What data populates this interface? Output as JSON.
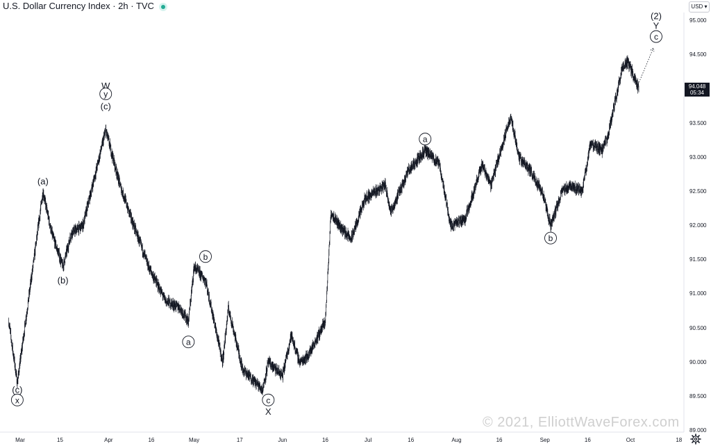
{
  "header": {
    "title": "U.S. Dollar Currency Index · 2h · TVC",
    "currency_label": "USD",
    "live_icon": "green-dot-icon"
  },
  "price_badge": {
    "price": "94.048",
    "countdown": "05:34"
  },
  "watermark": "© 2021, ElliottWaveForex.com",
  "settings_icon": "gear-icon",
  "colors": {
    "candles": "#131722",
    "badge": "#131722",
    "live": "#22ab94"
  },
  "chart_data": {
    "type": "line",
    "title": "U.S. Dollar Currency Index",
    "xlabel": "",
    "ylabel": "",
    "ylim": [
      89.0,
      95.25
    ],
    "grid": false,
    "x_ticks": [
      "Mar",
      "15",
      "Apr",
      "16",
      "May",
      "17",
      "Jun",
      "16",
      "Jul",
      "16",
      "Aug",
      "16",
      "Sep",
      "16",
      "Oct",
      "18"
    ],
    "y_ticks": [
      "95.000",
      "94.500",
      "94.000",
      "93.500",
      "93.000",
      "92.500",
      "92.000",
      "91.500",
      "91.000",
      "90.500",
      "90.000",
      "89.500",
      "89.000"
    ],
    "series": [
      {
        "values": [
          {
            "x": "Feb 25",
            "y": 90.6
          },
          {
            "x": "Feb 28",
            "y": 89.7
          },
          {
            "x": "Mar 9",
            "y": 92.5
          },
          {
            "x": "Mar 12",
            "y": 91.9
          },
          {
            "x": "Mar 16",
            "y": 91.4
          },
          {
            "x": "Mar 19",
            "y": 91.9
          },
          {
            "x": "Mar 23",
            "y": 92.0
          },
          {
            "x": "Mar 31",
            "y": 93.4
          },
          {
            "x": "Apr 5",
            "y": 92.6
          },
          {
            "x": "Apr 9",
            "y": 92.1
          },
          {
            "x": "Apr 15",
            "y": 91.4
          },
          {
            "x": "Apr 21",
            "y": 90.9
          },
          {
            "x": "Apr 26",
            "y": 90.8
          },
          {
            "x": "Apr 29",
            "y": 90.6
          },
          {
            "x": "May 1",
            "y": 91.4
          },
          {
            "x": "May 5",
            "y": 91.2
          },
          {
            "x": "May 11",
            "y": 90.0
          },
          {
            "x": "May 13",
            "y": 90.8
          },
          {
            "x": "May 18",
            "y": 89.9
          },
          {
            "x": "May 25",
            "y": 89.6
          },
          {
            "x": "May 27",
            "y": 90.0
          },
          {
            "x": "Jun 1",
            "y": 89.8
          },
          {
            "x": "Jun 4",
            "y": 90.4
          },
          {
            "x": "Jun 7",
            "y": 90.0
          },
          {
            "x": "Jun 10",
            "y": 90.1
          },
          {
            "x": "Jun 16",
            "y": 90.6
          },
          {
            "x": "Jun 18",
            "y": 92.2
          },
          {
            "x": "Jun 21",
            "y": 92.0
          },
          {
            "x": "Jun 25",
            "y": 91.8
          },
          {
            "x": "Jun 30",
            "y": 92.4
          },
          {
            "x": "Jul 7",
            "y": 92.6
          },
          {
            "x": "Jul 9",
            "y": 92.2
          },
          {
            "x": "Jul 15",
            "y": 92.8
          },
          {
            "x": "Jul 21",
            "y": 93.1
          },
          {
            "x": "Jul 26",
            "y": 92.9
          },
          {
            "x": "Jul 30",
            "y": 92.0
          },
          {
            "x": "Aug 4",
            "y": 92.1
          },
          {
            "x": "Aug 10",
            "y": 92.9
          },
          {
            "x": "Aug 13",
            "y": 92.6
          },
          {
            "x": "Aug 20",
            "y": 93.6
          },
          {
            "x": "Aug 23",
            "y": 93.0
          },
          {
            "x": "Aug 27",
            "y": 92.8
          },
          {
            "x": "Aug 31",
            "y": 92.5
          },
          {
            "x": "Sep 3",
            "y": 92.0
          },
          {
            "x": "Sep 7",
            "y": 92.5
          },
          {
            "x": "Sep 10",
            "y": 92.6
          },
          {
            "x": "Sep 14",
            "y": 92.5
          },
          {
            "x": "Sep 17",
            "y": 93.2
          },
          {
            "x": "Sep 21",
            "y": 93.1
          },
          {
            "x": "Sep 23",
            "y": 93.3
          },
          {
            "x": "Sep 28",
            "y": 94.3
          },
          {
            "x": "Sep 30",
            "y": 94.4
          },
          {
            "x": "Oct 4",
            "y": 94.0
          }
        ]
      }
    ],
    "annotations": [
      {
        "text": "W",
        "circled": false,
        "x": "Mar 31",
        "y": 94.05
      },
      {
        "text": "y",
        "circled": true,
        "x": "Mar 31",
        "y": 93.93
      },
      {
        "text": "(c)",
        "circled": false,
        "x": "Mar 31",
        "y": 93.75
      },
      {
        "text": "(a)",
        "circled": false,
        "x": "Mar 9",
        "y": 92.65
      },
      {
        "text": "(b)",
        "circled": false,
        "x": "Mar 16",
        "y": 91.2
      },
      {
        "text": "(c)",
        "circled": false,
        "x": "Feb 28",
        "y": 89.6
      },
      {
        "text": "x",
        "circled": true,
        "x": "Feb 28",
        "y": 89.45
      },
      {
        "text": "b",
        "circled": true,
        "x": "May 5",
        "y": 91.55
      },
      {
        "text": "a",
        "circled": true,
        "x": "Apr 29",
        "y": 90.3
      },
      {
        "text": "c",
        "circled": true,
        "x": "May 27",
        "y": 89.45
      },
      {
        "text": "X",
        "circled": false,
        "x": "May 27",
        "y": 89.28
      },
      {
        "text": "a",
        "circled": true,
        "x": "Jul 21",
        "y": 93.27
      },
      {
        "text": "b",
        "circled": true,
        "x": "Sep 3",
        "y": 91.82
      },
      {
        "text": "(2)",
        "circled": false,
        "x": "Oct 10",
        "y": 95.07
      },
      {
        "text": "Y",
        "circled": false,
        "x": "Oct 10",
        "y": 94.93
      },
      {
        "text": "c",
        "circled": true,
        "x": "Oct 10",
        "y": 94.77
      }
    ],
    "projection": [
      {
        "x": "Oct 4",
        "y": 94.1
      },
      {
        "x": "Oct 9",
        "y": 94.6
      }
    ]
  }
}
